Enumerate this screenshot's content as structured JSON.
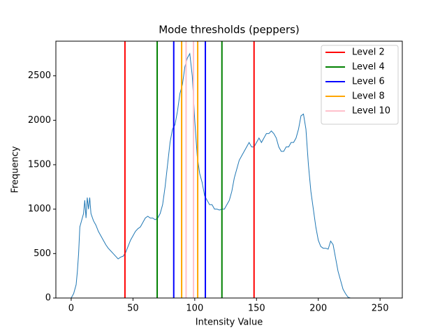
{
  "chart_data": {
    "type": "line",
    "title": "Mode thresholds (peppers)",
    "x_label": "Intensity Value",
    "y_label": "Frequency",
    "xlim": [
      -12.4,
      268
    ],
    "ylim": [
      0,
      2890
    ],
    "xticks": [
      0,
      50,
      100,
      150,
      200,
      250
    ],
    "yticks": [
      0,
      500,
      1000,
      1500,
      2000,
      2500
    ],
    "legend": "upper right",
    "histogram": {
      "color": "#1f77b4",
      "x": [
        0,
        2,
        4,
        5,
        6,
        7,
        8,
        10,
        11,
        12,
        13,
        14,
        15,
        16,
        18,
        20,
        22,
        24,
        26,
        28,
        30,
        32,
        34,
        36,
        38,
        40,
        42,
        44,
        46,
        48,
        50,
        52,
        54,
        56,
        58,
        60,
        62,
        64,
        66,
        68,
        70,
        72,
        74,
        76,
        78,
        80,
        82,
        84,
        86,
        88,
        90,
        92,
        94,
        96,
        98,
        100,
        102,
        104,
        106,
        108,
        110,
        112,
        114,
        116,
        118,
        120,
        122,
        124,
        126,
        128,
        130,
        132,
        134,
        136,
        138,
        140,
        142,
        144,
        146,
        148,
        150,
        152,
        154,
        156,
        158,
        160,
        162,
        164,
        166,
        168,
        170,
        172,
        174,
        176,
        178,
        180,
        182,
        184,
        186,
        188,
        190,
        192,
        194,
        196,
        198,
        200,
        202,
        204,
        206,
        208,
        210,
        212,
        214,
        216,
        218,
        220,
        222,
        224,
        226,
        255
      ],
      "values": [
        0,
        50,
        150,
        300,
        500,
        800,
        850,
        950,
        1100,
        900,
        1130,
        1000,
        1130,
        950,
        870,
        820,
        750,
        700,
        650,
        600,
        560,
        530,
        500,
        470,
        440,
        460,
        470,
        510,
        580,
        650,
        700,
        750,
        780,
        800,
        850,
        900,
        920,
        900,
        900,
        880,
        900,
        950,
        1050,
        1250,
        1500,
        1750,
        1900,
        1950,
        2100,
        2300,
        2400,
        2600,
        2700,
        2750,
        2500,
        2000,
        1600,
        1400,
        1300,
        1150,
        1100,
        1050,
        1050,
        1000,
        1000,
        990,
        1000,
        1000,
        1050,
        1100,
        1200,
        1350,
        1450,
        1550,
        1600,
        1650,
        1700,
        1750,
        1700,
        1700,
        1750,
        1800,
        1750,
        1800,
        1850,
        1850,
        1880,
        1850,
        1800,
        1700,
        1650,
        1650,
        1700,
        1700,
        1750,
        1750,
        1800,
        1900,
        2050,
        2070,
        1900,
        1500,
        1200,
        1000,
        800,
        650,
        580,
        560,
        560,
        550,
        640,
        600,
        450,
        300,
        200,
        100,
        50,
        10,
        0,
        0
      ]
    },
    "series": [
      {
        "name": "Level 2",
        "color": "#ff0000",
        "x": [
          43.5,
          148
        ]
      },
      {
        "name": "Level 4",
        "color": "#008000",
        "x": [
          69.6,
          122
        ]
      },
      {
        "name": "Level 6",
        "color": "#0000ff",
        "x": [
          83,
          108.6
        ]
      },
      {
        "name": "Level 8",
        "color": "#ffa500",
        "x": [
          89.4,
          102.4
        ]
      },
      {
        "name": "Level 10",
        "color": "#ffc0cb",
        "x": [
          93,
          99
        ]
      }
    ]
  }
}
